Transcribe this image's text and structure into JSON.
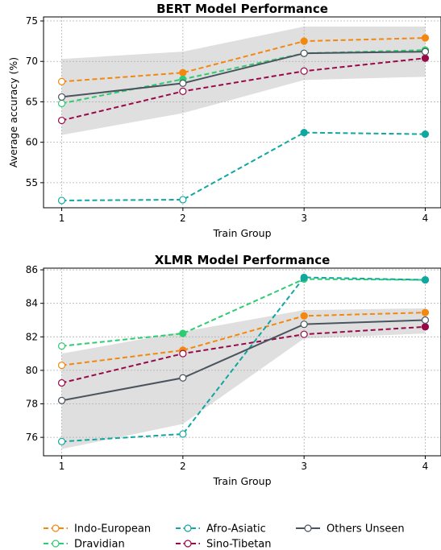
{
  "chart_data": [
    {
      "type": "line",
      "title": "BERT Model Performance",
      "xlabel": "Train Group",
      "ylabel": "Average accuracy (%)",
      "x": [
        1,
        2,
        3,
        4
      ],
      "xlim": [
        0.85,
        4.13
      ],
      "ylim": [
        51.9,
        75.5
      ],
      "xticks": [
        1,
        2,
        3,
        4
      ],
      "yticks": [
        55,
        60,
        65,
        70,
        75
      ],
      "grid": true,
      "band": {
        "lower": [
          60.9,
          63.6,
          67.7,
          68.1
        ],
        "upper": [
          70.3,
          71.2,
          74.3,
          74.3
        ]
      },
      "series": [
        {
          "name": "Indo-European",
          "values": [
            67.5,
            68.6,
            72.5,
            72.9
          ]
        },
        {
          "name": "Dravidian",
          "values": [
            64.8,
            67.8,
            71.0,
            71.4
          ]
        },
        {
          "name": "Afro-Asiatic",
          "values": [
            52.8,
            52.9,
            61.2,
            61.0
          ]
        },
        {
          "name": "Sino-Tibetan",
          "values": [
            62.7,
            66.3,
            68.8,
            70.4
          ]
        },
        {
          "name": "Others Unseen",
          "values": [
            65.6,
            67.3,
            71.0,
            71.2
          ]
        }
      ]
    },
    {
      "type": "line",
      "title": "XLMR Model Performance",
      "xlabel": "Train Group",
      "ylabel": "",
      "x": [
        1,
        2,
        3,
        4
      ],
      "xlim": [
        0.85,
        4.13
      ],
      "ylim": [
        74.9,
        86.1
      ],
      "xticks": [
        1,
        2,
        3,
        4
      ],
      "yticks": [
        76,
        78,
        80,
        82,
        84,
        86
      ],
      "grid": true,
      "band": {
        "lower": [
          75.3,
          76.8,
          81.9,
          82.2
        ],
        "upper": [
          81.0,
          82.3,
          83.6,
          83.7
        ]
      },
      "series": [
        {
          "name": "Indo-European",
          "values": [
            80.3,
            81.2,
            83.25,
            83.45
          ]
        },
        {
          "name": "Dravidian",
          "values": [
            81.45,
            82.2,
            85.45,
            85.4
          ]
        },
        {
          "name": "Afro-Asiatic",
          "values": [
            75.75,
            76.2,
            85.55,
            85.4
          ]
        },
        {
          "name": "Sino-Tibetan",
          "values": [
            79.25,
            81.0,
            82.15,
            82.6
          ]
        },
        {
          "name": "Others Unseen",
          "values": [
            78.2,
            79.55,
            82.75,
            83.0
          ]
        }
      ]
    }
  ],
  "series_styles": {
    "Indo-European": {
      "color": "#f4870d",
      "dash": true,
      "filled": [
        false,
        true,
        true,
        true
      ]
    },
    "Dravidian": {
      "color": "#2ecc71",
      "dash": true,
      "filled": [
        false,
        true,
        true,
        true
      ]
    },
    "Afro-Asiatic": {
      "color": "#10a7a1",
      "dash": true,
      "filled": [
        false,
        false,
        true,
        true
      ]
    },
    "Sino-Tibetan": {
      "color": "#990947",
      "dash": true,
      "filled": [
        false,
        false,
        false,
        true
      ]
    },
    "Others Unseen": {
      "color": "#4a545e",
      "dash": false,
      "filled": [
        false,
        false,
        false,
        false
      ]
    }
  },
  "band_color": "#d9d9d9",
  "legend": {
    "placement": "bottom",
    "items": [
      "Indo-European",
      "Dravidian",
      "Afro-Asiatic",
      "Sino-Tibetan",
      "Others Unseen"
    ]
  }
}
